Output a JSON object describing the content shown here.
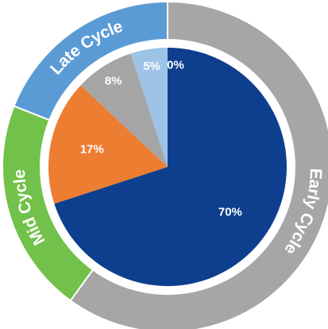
{
  "chart_data": [
    {
      "type": "pie",
      "values": [
        70,
        17,
        8,
        5,
        0
      ],
      "value_labels": [
        "70%",
        "17%",
        "8%",
        "5%",
        "0%"
      ],
      "colors": [
        "#0e3f8e",
        "#ed7d31",
        "#a5a5a5",
        "#9dc3e6",
        "#5b9bd5"
      ]
    },
    {
      "type": "donut",
      "categories": [
        "Early Cycle",
        "Mid Cycle",
        "Late Cycle"
      ],
      "values": [
        60,
        21,
        19
      ],
      "colors": [
        "#a6a6a6",
        "#72c14a",
        "#5b9bd5"
      ]
    }
  ]
}
